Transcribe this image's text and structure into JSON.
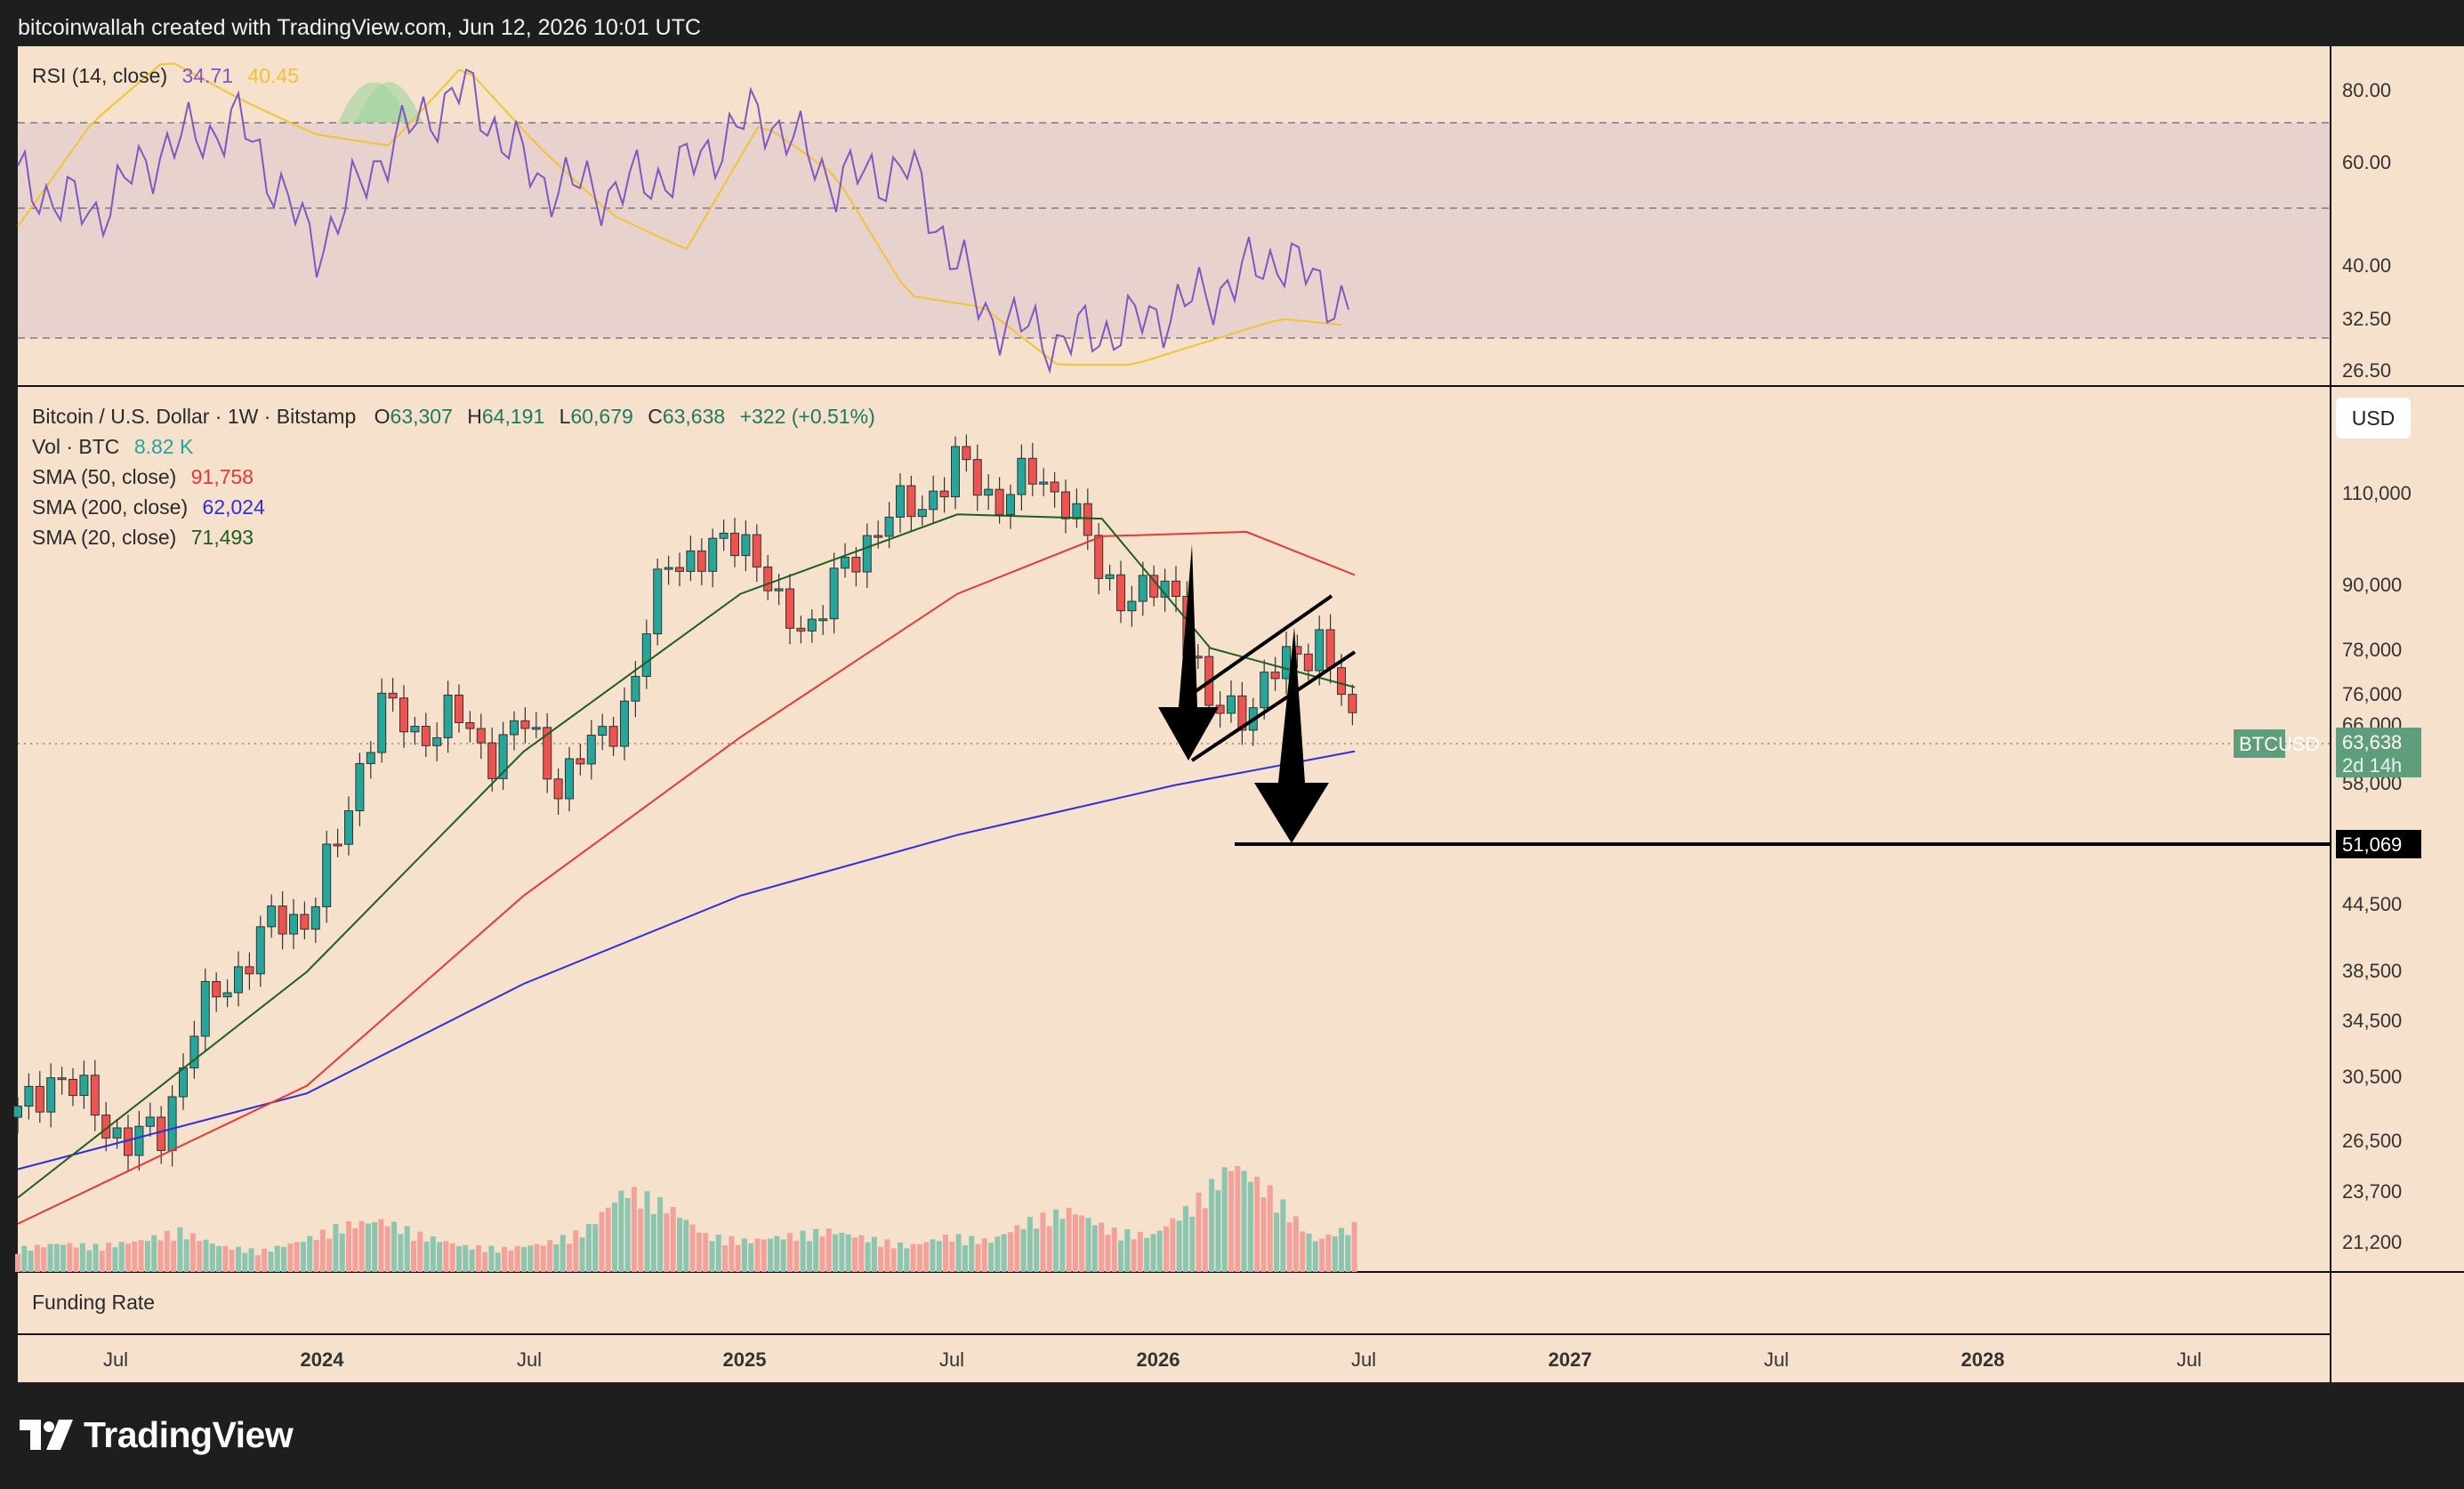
{
  "header": {
    "attribution": "bitcoinwallah created with TradingView.com, Jun 12, 2026 10:01 UTC"
  },
  "brand": {
    "name": "TradingView",
    "logo_icon": "tradingview-logo-icon"
  },
  "colors": {
    "background": "#1e1e1e",
    "chart_bg": "#f5e1cc",
    "up": "#26a69a",
    "down": "#ef5350",
    "sma50": "#e53935",
    "sma200": "#2f2fd8",
    "sma20": "#1e5e20",
    "rsi": "#7e57c2",
    "rsi_ma": "#f2c335",
    "tag_green": "#5e9e7c",
    "tag_black": "#000000"
  },
  "rsi_pane": {
    "legend_label": "RSI (14, close)",
    "rsi_value": "34.71",
    "ma_value": "40.45",
    "levels": [
      "80.00",
      "60.00",
      "40.00",
      "32.50",
      "26.50"
    ]
  },
  "price_pane": {
    "symbol_line": "Bitcoin / U.S. Dollar · 1W · Bitstamp",
    "ohlc": {
      "o_label": "O",
      "o": "63,307",
      "h_label": "H",
      "h": "64,191",
      "l_label": "L",
      "l": "60,679",
      "c_label": "C",
      "c": "63,638",
      "change": "+322 (+0.51%)"
    },
    "indicators": [
      {
        "label": "Vol · BTC",
        "value": "8.82 K",
        "color": "#26a69a"
      },
      {
        "label": "SMA (50, close)",
        "value": "91,758",
        "color": "#e53935"
      },
      {
        "label": "SMA (200, close)",
        "value": "62,024",
        "color": "#2f2fd8"
      },
      {
        "label": "SMA (20, close)",
        "value": "71,493",
        "color": "#1e5e20"
      }
    ],
    "currency_button": "USD",
    "price_labels": [
      "110,000",
      "90,000",
      "78,000",
      "76,000",
      "66,000",
      "58,000",
      "44,500",
      "38,500",
      "34,500",
      "30,500",
      "26,500",
      "23,700",
      "21,200"
    ],
    "last_price_tag": {
      "symbol": "BTCUSD",
      "price": "63,638",
      "countdown": "2d 14h"
    },
    "target_tag": "51,069"
  },
  "funding_pane": {
    "label": "Funding Rate"
  },
  "time_axis": [
    "Jul",
    "2024",
    "Jul",
    "2025",
    "Jul",
    "2026",
    "Jul",
    "2027",
    "Jul",
    "2028",
    "Jul"
  ],
  "chart_data": {
    "type": "candlestick",
    "title": "Bitcoin / U.S. Dollar · 1W · Bitstamp",
    "interval": "1W",
    "x_range": [
      "2023-05",
      "2028-09"
    ],
    "y_scale": "log",
    "y_range": [
      19500,
      138000
    ],
    "last": {
      "open": 63307,
      "high": 64191,
      "low": 60679,
      "close": 63638,
      "change": 322,
      "change_pct": 0.51
    },
    "close_path": [
      [
        "2023-05",
        27500
      ],
      [
        "2023-06",
        30400
      ],
      [
        "2023-08",
        26000
      ],
      [
        "2023-09",
        26600
      ],
      [
        "2023-10",
        34500
      ],
      [
        "2023-11",
        37700
      ],
      [
        "2023-12",
        42200
      ],
      [
        "2024-01",
        43000
      ],
      [
        "2024-02",
        51800
      ],
      [
        "2024-03",
        69500
      ],
      [
        "2024-04",
        64000
      ],
      [
        "2024-05",
        67500
      ],
      [
        "2024-06",
        61500
      ],
      [
        "2024-07",
        66000
      ],
      [
        "2024-08",
        57500
      ],
      [
        "2024-09",
        63300
      ],
      [
        "2024-10",
        70200
      ],
      [
        "2024-11",
        96400
      ],
      [
        "2024-12",
        94000
      ],
      [
        "2025-01",
        102400
      ],
      [
        "2025-02",
        84300
      ],
      [
        "2025-03",
        82500
      ],
      [
        "2025-04",
        94200
      ],
      [
        "2025-05",
        104600
      ],
      [
        "2025-06",
        107100
      ],
      [
        "2025-07",
        117800
      ],
      [
        "2025-08",
        108200
      ],
      [
        "2025-09",
        114000
      ],
      [
        "2025-10",
        109600
      ],
      [
        "2025-11",
        90400
      ],
      [
        "2025-12",
        87500
      ],
      [
        "2026-01",
        89000
      ],
      [
        "2026-02",
        67000
      ],
      [
        "2026-03",
        68500
      ],
      [
        "2026-04",
        75000
      ],
      [
        "2026-05",
        80000
      ],
      [
        "2026-06",
        63638
      ]
    ],
    "sma50_path": [
      [
        "2023-05",
        21700
      ],
      [
        "2024-01",
        29500
      ],
      [
        "2024-07",
        45000
      ],
      [
        "2025-01",
        64000
      ],
      [
        "2025-07",
        88000
      ],
      [
        "2025-11",
        100000
      ],
      [
        "2026-03",
        101000
      ],
      [
        "2026-06",
        91758
      ]
    ],
    "sma200_path": [
      [
        "2023-05",
        24500
      ],
      [
        "2024-01",
        29000
      ],
      [
        "2024-07",
        37000
      ],
      [
        "2025-01",
        45000
      ],
      [
        "2025-07",
        51500
      ],
      [
        "2026-01",
        57500
      ],
      [
        "2026-06",
        62024
      ]
    ],
    "sma20_path": [
      [
        "2023-05",
        23000
      ],
      [
        "2024-01",
        38000
      ],
      [
        "2024-07",
        62000
      ],
      [
        "2025-01",
        88000
      ],
      [
        "2025-07",
        105000
      ],
      [
        "2025-11",
        104000
      ],
      [
        "2026-02",
        78000
      ],
      [
        "2026-06",
        71493
      ]
    ],
    "volume_heights": [
      0.45,
      0.55,
      0.5,
      0.6,
      0.8,
      0.5,
      0.4,
      0.6,
      0.9,
      1.0,
      0.7,
      0.5,
      0.45,
      0.55,
      0.8,
      1.6,
      1.3,
      0.7,
      0.6,
      0.7,
      0.8,
      0.65,
      0.5,
      0.7,
      0.6,
      1.0,
      1.2,
      0.8,
      0.7,
      1.3,
      2.1,
      1.5,
      0.6,
      0.9
    ],
    "rsi": {
      "value": 34.71,
      "ma": 40.45,
      "ylim": [
        26.5,
        82
      ],
      "bands": [
        30,
        70
      ]
    },
    "rsi_path": [
      [
        60,
        52
      ],
      [
        54,
        70
      ],
      [
        66,
        81
      ],
      [
        70,
        74
      ],
      [
        48,
        68
      ],
      [
        66,
        66
      ],
      [
        76,
        80
      ],
      [
        60,
        66
      ],
      [
        58,
        54
      ],
      [
        62,
        48
      ],
      [
        72,
        70
      ],
      [
        60,
        61
      ],
      [
        62,
        40
      ],
      [
        37,
        38
      ],
      [
        32,
        28
      ],
      [
        35,
        28
      ],
      [
        40,
        32
      ],
      [
        47,
        36
      ],
      [
        37,
        34.71
      ]
    ],
    "annotations": [
      {
        "type": "horizontal_line",
        "value": 51069
      },
      {
        "type": "arrow_down",
        "label": ""
      },
      {
        "type": "rising_wedge",
        "label": ""
      }
    ]
  }
}
